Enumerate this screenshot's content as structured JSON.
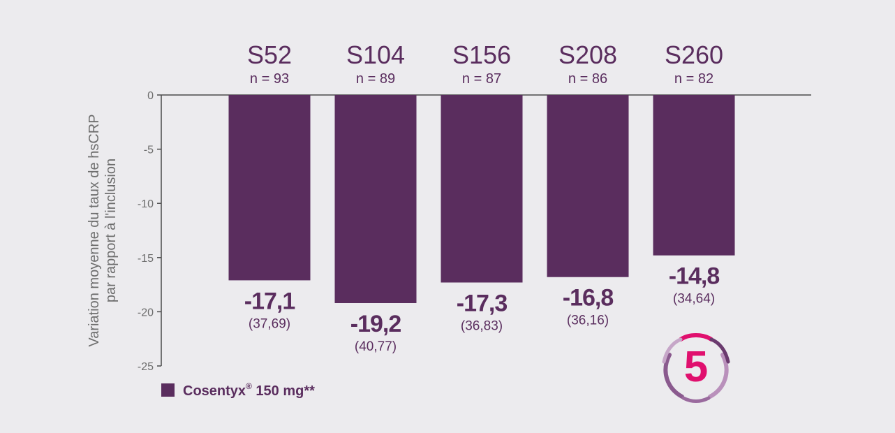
{
  "chart_data": {
    "type": "bar",
    "categories": [
      "S52",
      "S104",
      "S156",
      "S208",
      "S260"
    ],
    "n_labels": [
      "n = 93",
      "n = 89",
      "n = 87",
      "n = 86",
      "n = 82"
    ],
    "series": [
      {
        "name": "Cosentyx® 150 mg**",
        "values": [
          -17.1,
          -19.2,
          -17.3,
          -16.8,
          -14.8
        ],
        "value_labels": [
          "-17,1",
          "-19,2",
          "-17,3",
          "-16,8",
          "-14,8"
        ],
        "ci_labels": [
          "(37,69)",
          "(40,77)",
          "(36,83)",
          "(36,16)",
          "(34,64)"
        ]
      }
    ],
    "ylabel_line1": "Variation moyenne du taux de hsCRP",
    "ylabel_line2": "par rapport à l'inclusion",
    "ylim": [
      -25,
      0
    ],
    "yticks": [
      0,
      -5,
      -10,
      -15,
      -20,
      -25
    ],
    "ytick_labels": [
      "0",
      "-5",
      "-10",
      "-15",
      "-20",
      "-25"
    ],
    "legend": {
      "label_main": "Cosentyx",
      "label_sup": "®",
      "label_rest": " 150 mg**",
      "placement": "bottom-left"
    },
    "badge_text": "5",
    "grid": false
  },
  "colors": {
    "bar": "#5a2d5e",
    "background": "#ecebee",
    "axis": "#4a4a4a",
    "badge_number": "#e0106e",
    "badge_ring": "#7a4a7e"
  }
}
